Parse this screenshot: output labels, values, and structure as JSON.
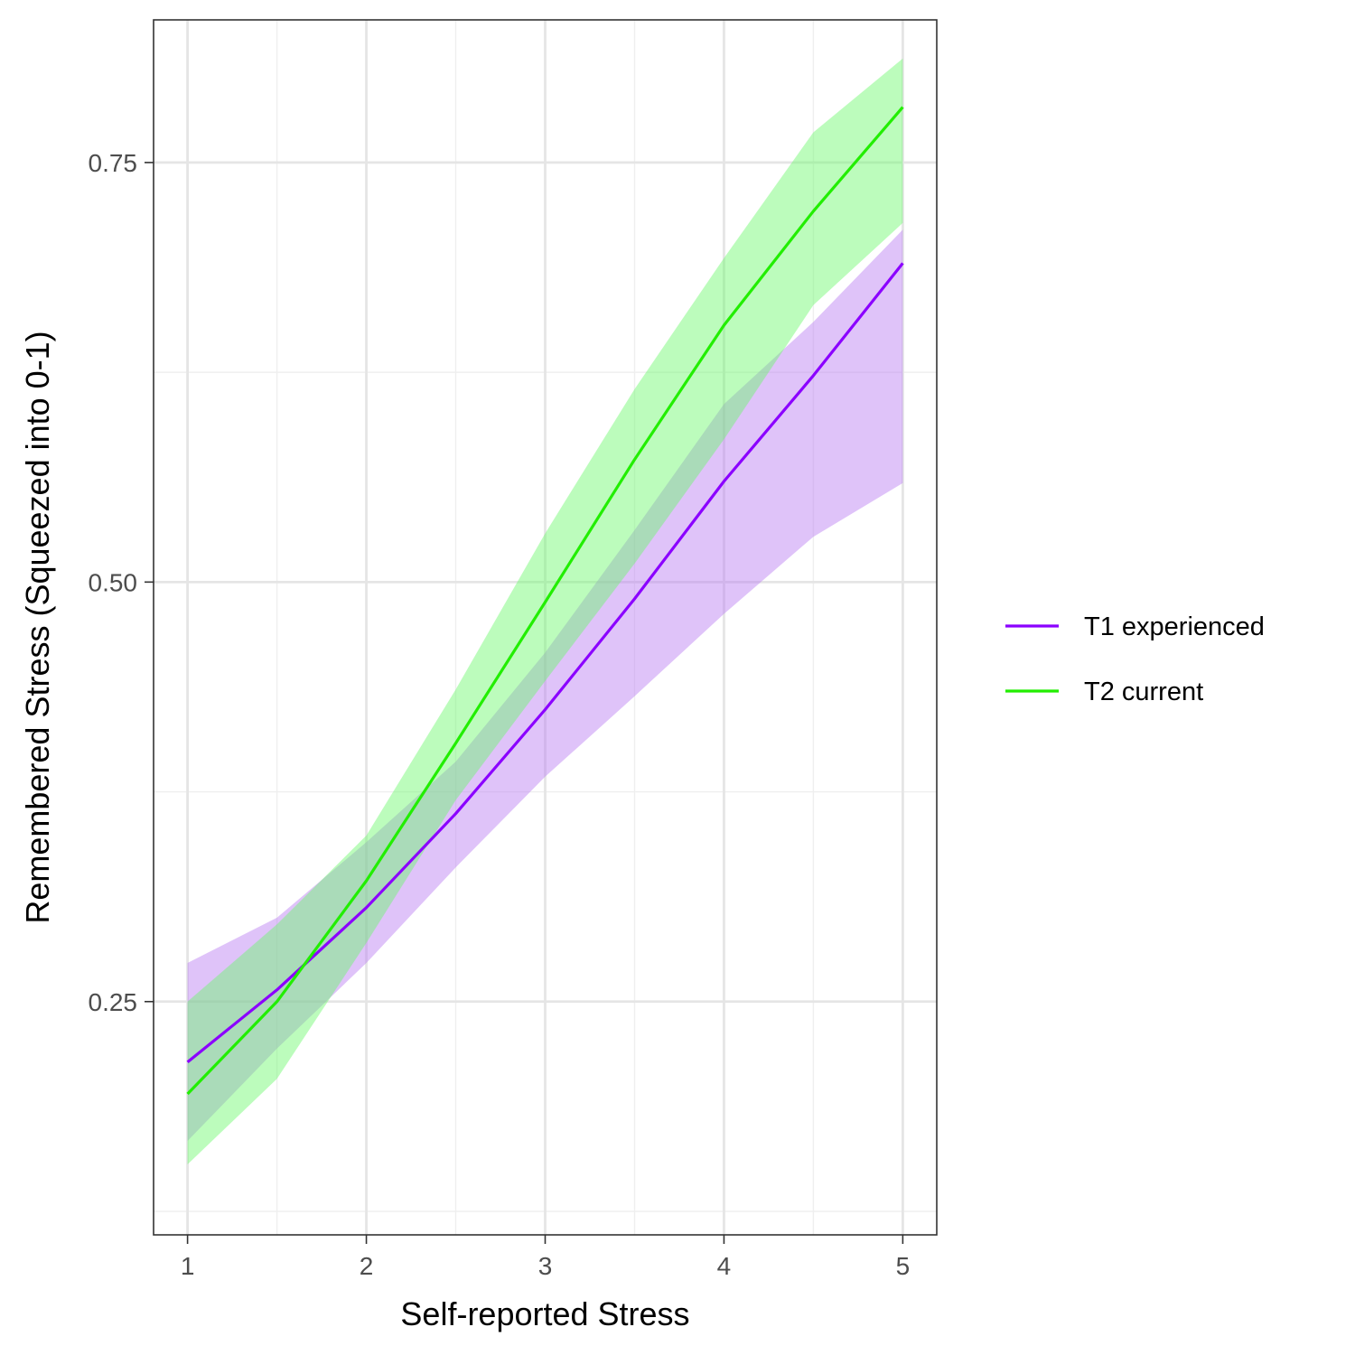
{
  "chart_data": {
    "type": "line",
    "title": "",
    "xlabel": "Self-reported Stress",
    "ylabel": "Remembered Stress (Squeezed into 0-1)",
    "xlim": [
      0.81,
      5.19
    ],
    "ylim": [
      0.111,
      0.835
    ],
    "x_ticks": [
      1,
      2,
      3,
      4,
      5
    ],
    "x_tick_labels": [
      "1",
      "2",
      "3",
      "4",
      "5"
    ],
    "x_minor_ticks": [
      1.5,
      2.5,
      3.5,
      4.5
    ],
    "y_ticks": [
      0.25,
      0.5,
      0.75
    ],
    "y_tick_labels": [
      "0.25",
      "0.50",
      "0.75"
    ],
    "y_minor_ticks": [
      0.125,
      0.375,
      0.625
    ],
    "grid": true,
    "legend_position": "right",
    "series": [
      {
        "name": "T1 experienced",
        "color": "#8B00FF",
        "ribbon_color": "#B87BF2",
        "x": [
          1,
          1.5,
          2,
          2.5,
          3,
          3.5,
          4,
          4.5,
          5
        ],
        "y": [
          0.214,
          0.257,
          0.306,
          0.362,
          0.424,
          0.49,
          0.56,
          0.623,
          0.69
        ],
        "lower": [
          0.167,
          0.222,
          0.273,
          0.33,
          0.384,
          0.432,
          0.481,
          0.527,
          0.559
        ],
        "upper": [
          0.273,
          0.3,
          0.345,
          0.393,
          0.458,
          0.531,
          0.606,
          0.655,
          0.71
        ]
      },
      {
        "name": "T2 current",
        "color": "#22EE00",
        "ribbon_color": "#6BF86B",
        "x": [
          1,
          1.5,
          2,
          2.5,
          3,
          3.5,
          4,
          4.5,
          5
        ],
        "y": [
          0.195,
          0.25,
          0.322,
          0.404,
          0.488,
          0.573,
          0.653,
          0.721,
          0.783
        ],
        "lower": [
          0.153,
          0.204,
          0.285,
          0.37,
          0.441,
          0.511,
          0.585,
          0.665,
          0.714
        ],
        "upper": [
          0.25,
          0.296,
          0.349,
          0.436,
          0.529,
          0.615,
          0.693,
          0.768,
          0.812
        ]
      }
    ]
  }
}
